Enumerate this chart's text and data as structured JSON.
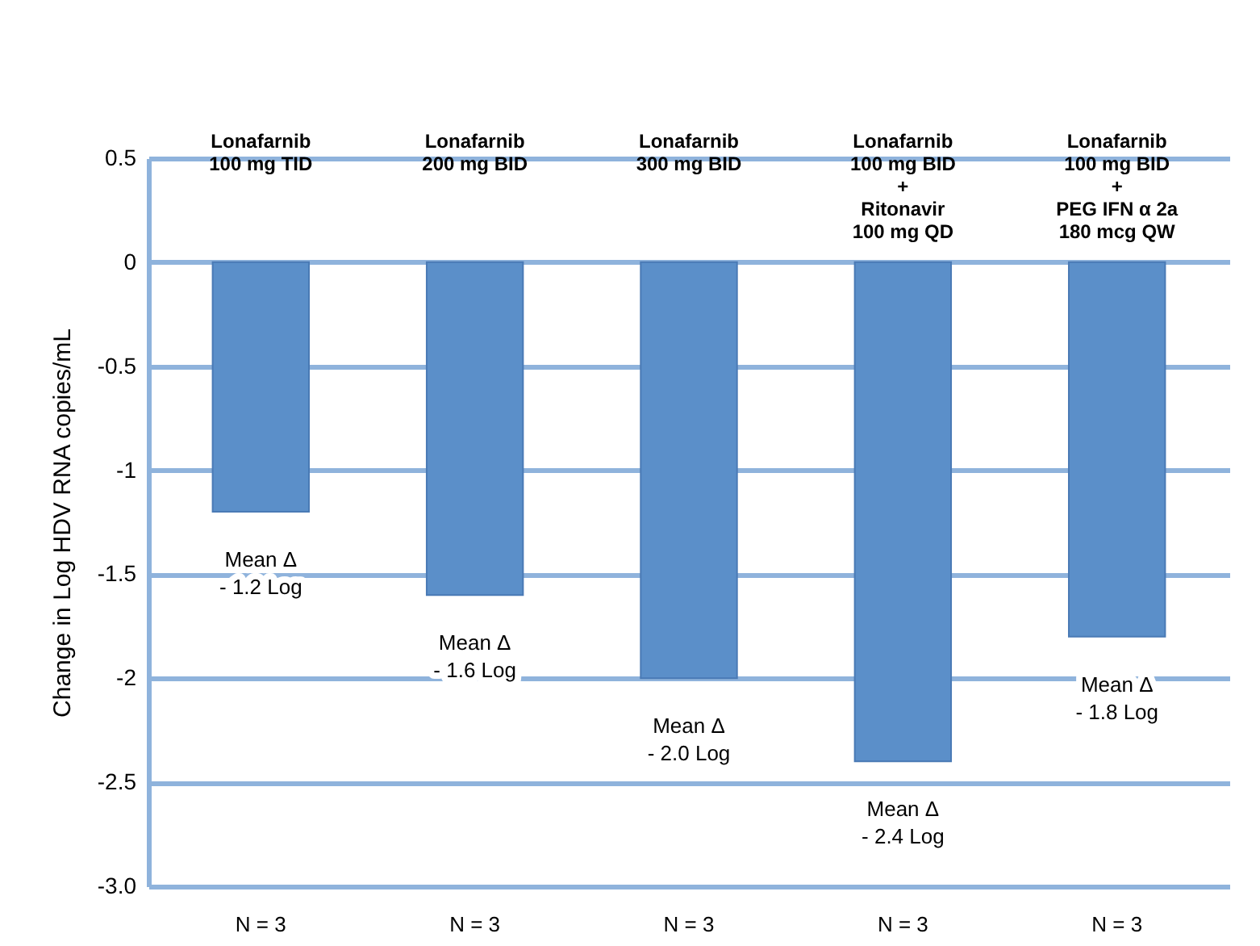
{
  "chart_data": {
    "type": "bar",
    "ylabel": "Change in Log HDV RNA copies/mL",
    "categories": [
      "Lonafarnib\n100 mg TID",
      "Lonafarnib\n200 mg BID",
      "Lonafarnib\n300 mg BID",
      "Lonafarnib\n100 mg BID\n+\nRitonavir\n100 mg QD",
      "Lonafarnib\n100 mg BID\n+\nPEG IFN α 2a\n180 mcg QW"
    ],
    "values": [
      -1.2,
      -1.6,
      -2.0,
      -2.4,
      -1.8
    ],
    "value_labels": [
      "Mean Δ\n- 1.2 Log",
      "Mean Δ\n- 1.6 Log",
      "Mean Δ\n- 2.0 Log",
      "Mean Δ\n- 2.4 Log",
      "Mean Δ\n- 1.8 Log"
    ],
    "color": "#5b8fc9",
    "ylim": [
      -3,
      0.5
    ],
    "yticks": [
      0.5,
      0,
      -0.5,
      -1,
      -1.5,
      -2,
      -2.5,
      {
        "value": -3,
        "label": "-3.0"
      }
    ],
    "grid": "y",
    "annotations": [
      "N = 3",
      "N = 3",
      "N = 3",
      "N = 3",
      "N = 3"
    ]
  }
}
